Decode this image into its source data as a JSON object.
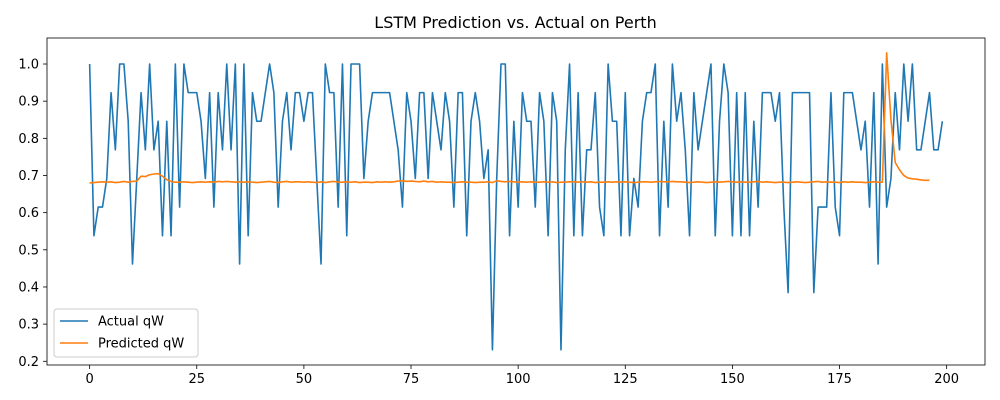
{
  "chart_data": {
    "type": "line",
    "title": "LSTM Prediction vs. Actual on Perth",
    "xlabel": "",
    "ylabel": "",
    "xlim": [
      -9.95,
      208.95
    ],
    "ylim": [
      0.19,
      1.07
    ],
    "xticks": [
      0,
      25,
      50,
      75,
      100,
      125,
      150,
      175,
      200
    ],
    "yticks": [
      0.2,
      0.3,
      0.4,
      0.5,
      0.6,
      0.7,
      0.8,
      0.9,
      1.0
    ],
    "ytick_labels": [
      "0.2",
      "0.3",
      "0.4",
      "0.5",
      "0.6",
      "0.7",
      "0.8",
      "0.9",
      "1.0"
    ],
    "grid": false,
    "legend_position": "lower-left",
    "series": [
      {
        "name": "Actual qW",
        "color": "#1f77b4",
        "y": [
          1.0,
          0.538,
          0.615,
          0.615,
          0.692,
          0.923,
          0.769,
          1.0,
          1.0,
          0.846,
          0.462,
          0.692,
          0.923,
          0.769,
          1.0,
          0.769,
          0.846,
          0.538,
          0.846,
          0.538,
          1.0,
          0.615,
          1.0,
          0.923,
          0.923,
          0.923,
          0.846,
          0.692,
          0.923,
          0.615,
          0.923,
          0.769,
          1.0,
          0.769,
          1.0,
          0.462,
          1.0,
          0.538,
          0.923,
          0.846,
          0.846,
          0.923,
          1.0,
          0.923,
          0.615,
          0.846,
          0.923,
          0.769,
          0.923,
          0.923,
          0.846,
          0.923,
          0.923,
          0.692,
          0.462,
          1.0,
          0.923,
          0.923,
          0.615,
          1.0,
          0.538,
          1.0,
          1.0,
          1.0,
          0.692,
          0.846,
          0.923,
          0.923,
          0.923,
          0.923,
          0.923,
          0.846,
          0.769,
          0.615,
          0.923,
          0.846,
          0.692,
          0.923,
          0.923,
          0.692,
          0.923,
          0.846,
          0.769,
          0.923,
          0.846,
          0.615,
          0.923,
          0.923,
          0.538,
          0.846,
          0.923,
          0.846,
          0.692,
          0.769,
          0.231,
          0.692,
          1.0,
          1.0,
          0.538,
          0.846,
          0.615,
          0.923,
          0.846,
          0.846,
          0.615,
          0.923,
          0.846,
          0.538,
          0.923,
          0.846,
          0.231,
          0.769,
          1.0,
          0.538,
          0.923,
          0.538,
          0.769,
          0.769,
          0.923,
          0.615,
          0.538,
          1.0,
          0.846,
          0.846,
          0.538,
          0.923,
          0.538,
          0.692,
          0.615,
          0.846,
          0.923,
          0.923,
          1.0,
          0.538,
          0.846,
          0.615,
          1.0,
          0.846,
          0.923,
          0.769,
          0.538,
          0.923,
          0.769,
          0.846,
          0.923,
          1.0,
          0.538,
          0.846,
          1.0,
          0.923,
          0.538,
          0.923,
          0.538,
          0.923,
          0.538,
          0.846,
          0.615,
          0.923,
          0.923,
          0.923,
          0.846,
          0.923,
          0.615,
          0.385,
          0.923,
          0.923,
          0.923,
          0.923,
          0.923,
          0.385,
          0.615,
          0.615,
          0.615,
          0.923,
          0.615,
          0.538,
          0.923,
          0.923,
          0.923,
          0.846,
          0.769,
          0.846,
          0.615,
          0.923,
          0.462,
          1.0,
          0.615,
          0.692,
          0.923,
          0.769,
          1.0,
          0.846,
          1.0,
          0.769,
          0.769,
          0.846,
          0.923,
          0.769,
          0.769,
          0.846
        ]
      },
      {
        "name": "Predicted qW",
        "color": "#ff7f0e",
        "y": [
          0.68,
          0.681,
          0.682,
          0.683,
          0.682,
          0.683,
          0.681,
          0.682,
          0.684,
          0.682,
          0.684,
          0.685,
          0.698,
          0.697,
          0.702,
          0.704,
          0.705,
          0.698,
          0.689,
          0.684,
          0.682,
          0.682,
          0.683,
          0.682,
          0.681,
          0.682,
          0.683,
          0.682,
          0.683,
          0.682,
          0.684,
          0.683,
          0.684,
          0.683,
          0.682,
          0.683,
          0.682,
          0.683,
          0.682,
          0.681,
          0.682,
          0.683,
          0.684,
          0.682,
          0.681,
          0.683,
          0.684,
          0.682,
          0.683,
          0.683,
          0.682,
          0.683,
          0.682,
          0.681,
          0.683,
          0.681,
          0.683,
          0.684,
          0.682,
          0.682,
          0.683,
          0.682,
          0.683,
          0.681,
          0.682,
          0.682,
          0.681,
          0.683,
          0.682,
          0.683,
          0.682,
          0.683,
          0.685,
          0.686,
          0.684,
          0.685,
          0.684,
          0.683,
          0.685,
          0.683,
          0.684,
          0.682,
          0.683,
          0.682,
          0.682,
          0.681,
          0.682,
          0.683,
          0.682,
          0.682,
          0.681,
          0.682,
          0.682,
          0.683,
          0.681,
          0.686,
          0.684,
          0.683,
          0.684,
          0.683,
          0.682,
          0.683,
          0.682,
          0.683,
          0.682,
          0.682,
          0.683,
          0.682,
          0.683,
          0.681,
          0.682,
          0.682,
          0.683,
          0.683,
          0.682,
          0.683,
          0.682,
          0.683,
          0.681,
          0.682,
          0.682,
          0.683,
          0.682,
          0.683,
          0.682,
          0.683,
          0.682,
          0.681,
          0.682,
          0.683,
          0.683,
          0.682,
          0.683,
          0.684,
          0.683,
          0.683,
          0.684,
          0.683,
          0.683,
          0.682,
          0.681,
          0.682,
          0.683,
          0.682,
          0.681,
          0.682,
          0.683,
          0.682,
          0.683,
          0.684,
          0.683,
          0.682,
          0.683,
          0.682,
          0.682,
          0.683,
          0.684,
          0.682,
          0.683,
          0.682,
          0.681,
          0.682,
          0.682,
          0.681,
          0.682,
          0.683,
          0.682,
          0.681,
          0.682,
          0.683,
          0.684,
          0.682,
          0.683,
          0.682,
          0.682,
          0.681,
          0.683,
          0.682,
          0.683,
          0.682,
          0.682,
          0.681,
          0.682,
          0.683,
          0.682,
          0.682,
          1.03,
          0.85,
          0.735,
          0.715,
          0.7,
          0.693,
          0.691,
          0.69,
          0.688,
          0.687,
          0.687
        ]
      }
    ]
  }
}
